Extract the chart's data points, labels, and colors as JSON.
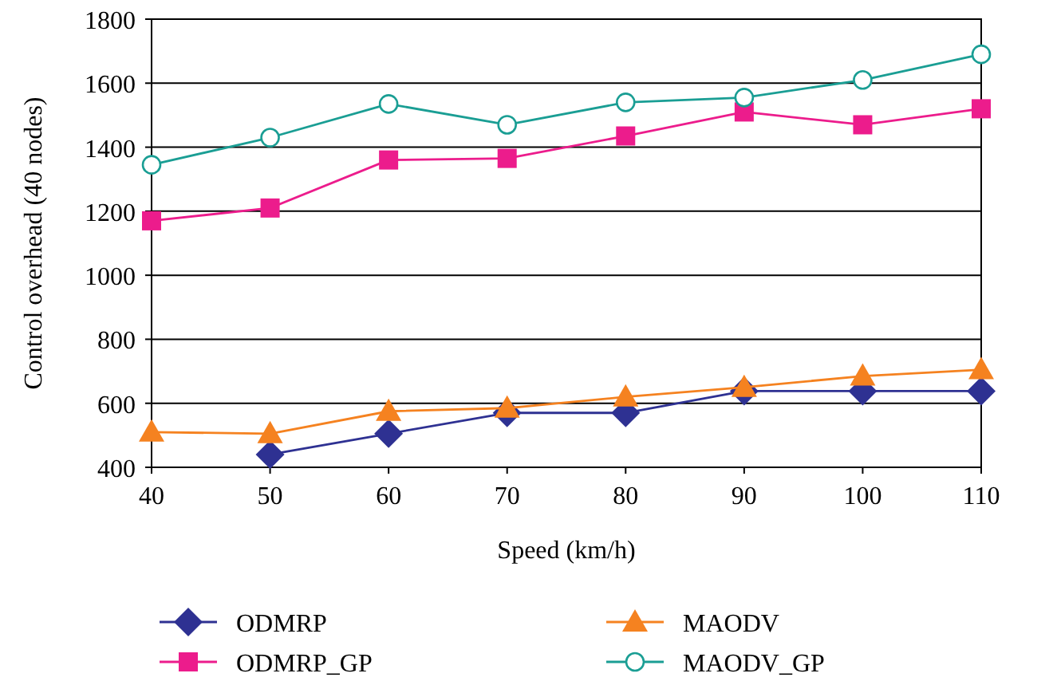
{
  "chart_data": {
    "type": "line",
    "xlabel": "Speed (km/h)",
    "ylabel": "Control overhead (40 nodes)",
    "x": [
      40,
      50,
      60,
      70,
      80,
      90,
      100,
      110
    ],
    "xlim": [
      40,
      110
    ],
    "xticks": [
      40,
      50,
      60,
      70,
      80,
      90,
      100,
      110
    ],
    "ylim": [
      400,
      1800
    ],
    "yticks": [
      400,
      600,
      800,
      1000,
      1200,
      1400,
      1600,
      1800
    ],
    "grid": "y",
    "legend": "bottom",
    "series": [
      {
        "name": "ODMRP",
        "color": "#2e3192",
        "marker": "diamond",
        "values": [
          null,
          440,
          505,
          570,
          570,
          638,
          638,
          638
        ]
      },
      {
        "name": "ODMRP_GP",
        "color": "#ec1c8c",
        "marker": "square",
        "values": [
          1170,
          1210,
          1360,
          1365,
          1435,
          1510,
          1470,
          1520
        ]
      },
      {
        "name": "MAODV",
        "color": "#f58220",
        "marker": "triangle",
        "values": [
          510,
          505,
          575,
          585,
          620,
          650,
          685,
          705
        ]
      },
      {
        "name": "MAODV_GP",
        "color": "#1a9e94",
        "marker": "circle",
        "values": [
          1345,
          1430,
          1535,
          1470,
          1540,
          1555,
          1610,
          1690
        ]
      }
    ]
  }
}
